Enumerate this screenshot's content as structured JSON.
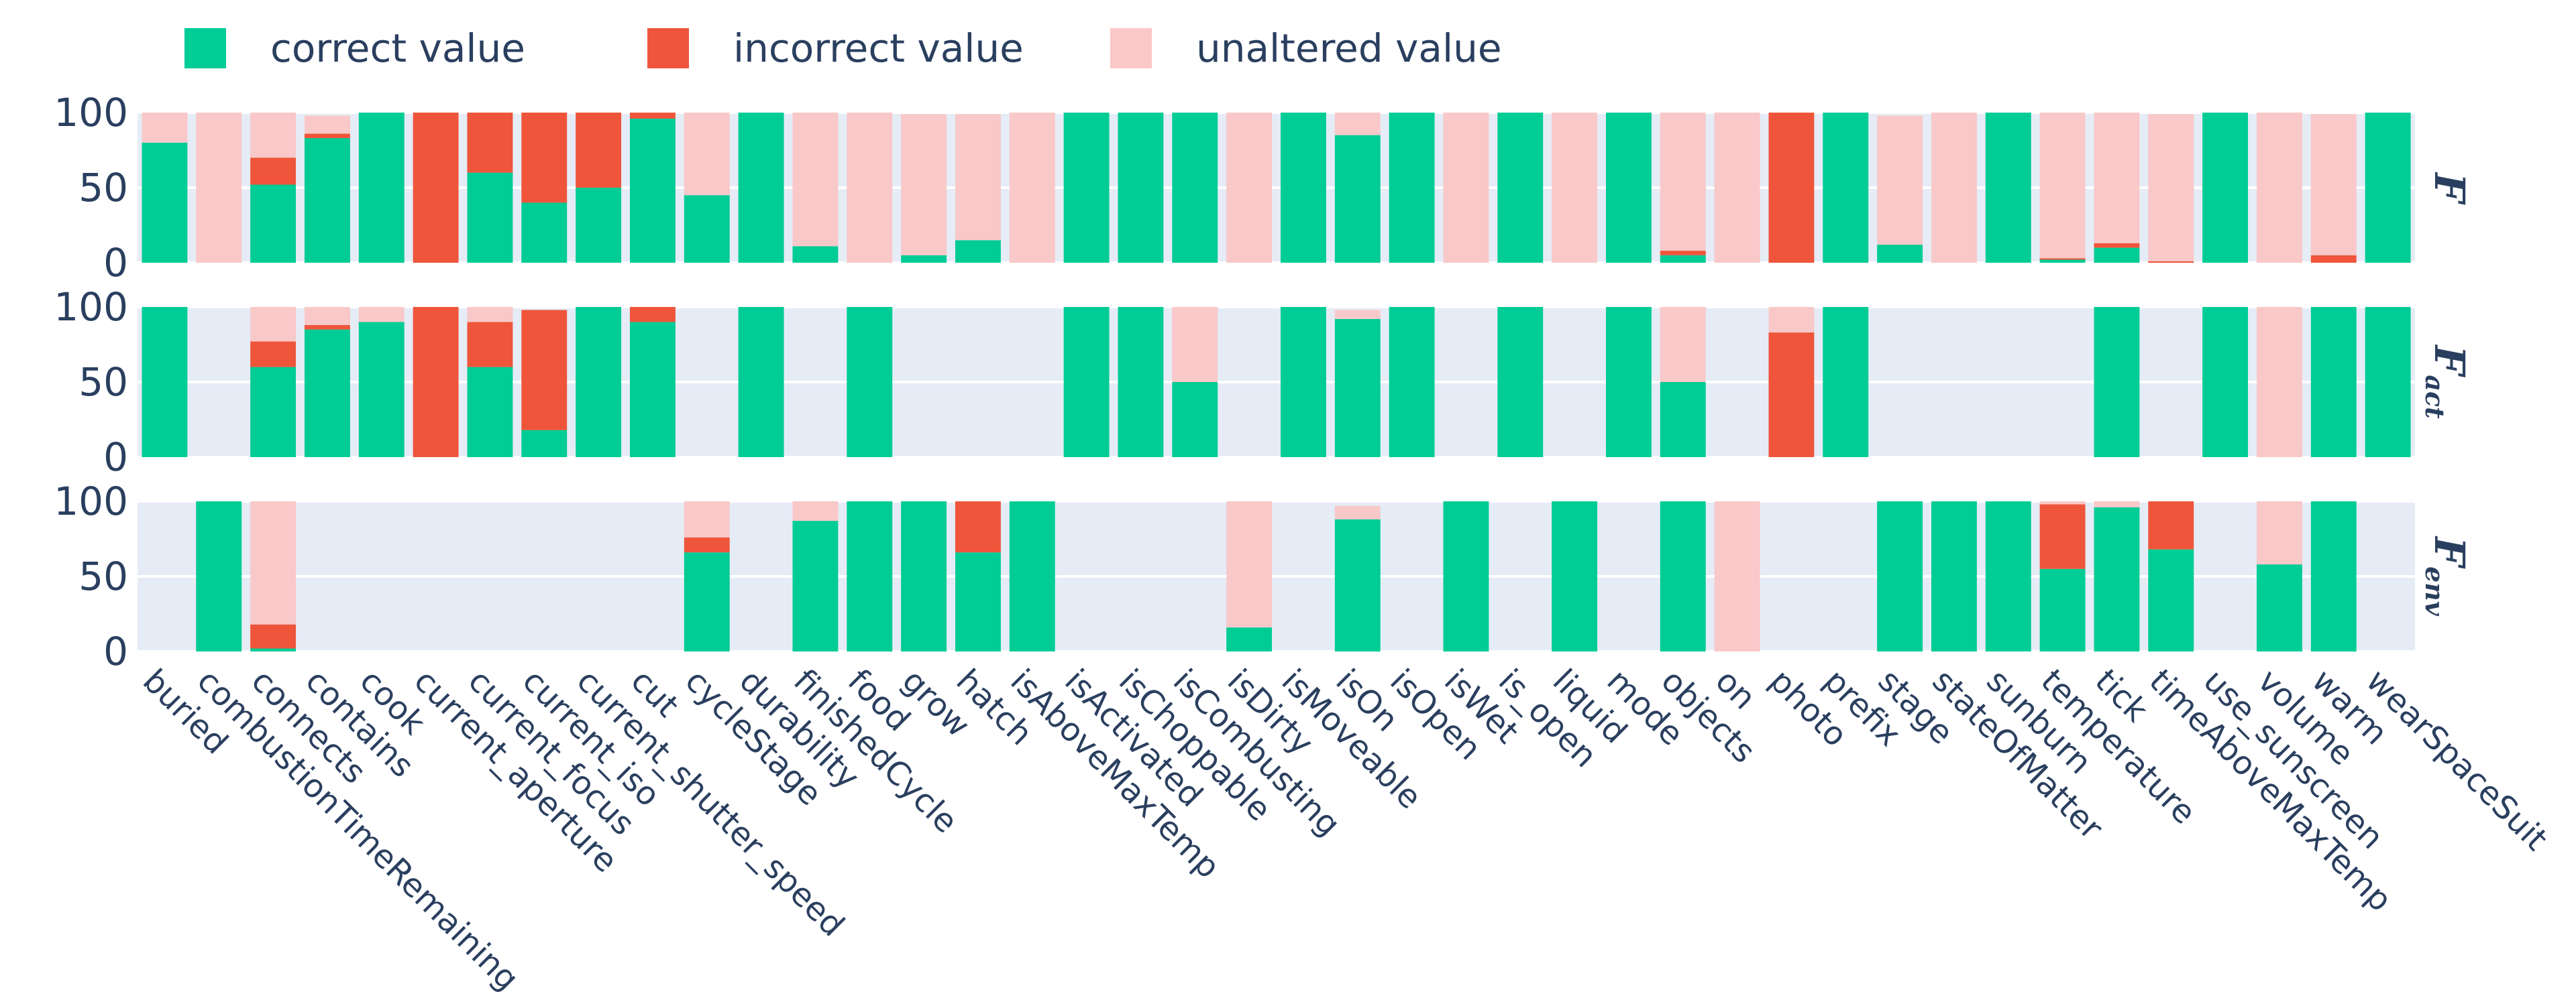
{
  "chart_data": {
    "type": "bar",
    "stacked": true,
    "colors": {
      "correct value": "#00cc96",
      "incorrect value": "#ef553b",
      "unaltered value": "#f9c8c8",
      "panel_background": "#e5ecf6",
      "text": "#2a3f5f"
    },
    "legend": {
      "position": "top-left",
      "entries": [
        "correct value",
        "incorrect value",
        "unaltered value"
      ]
    },
    "categories": [
      "buried",
      "combustionTimeRemaining",
      "connects",
      "contains",
      "cook",
      "current_aperture",
      "current_focus",
      "current_iso",
      "current_shutter_speed",
      "cut",
      "cycleStage",
      "durability",
      "finishedCycle",
      "food",
      "grow",
      "hatch",
      "isAboveMaxTemp",
      "isActivated",
      "isChoppable",
      "isCombusting",
      "isDirty",
      "isMoveable",
      "isOn",
      "isOpen",
      "isWet",
      "is_open",
      "liquid",
      "mode",
      "objects",
      "on",
      "photo",
      "prefix",
      "stage",
      "stateOfMatter",
      "sunburn",
      "temperature",
      "tick",
      "timeAboveMaxTemp",
      "use_sunscreen",
      "volume",
      "warm",
      "wearSpaceSuit"
    ],
    "y_ticks": [
      0,
      50,
      100
    ],
    "ylim": [
      0,
      100
    ],
    "grid": true,
    "panels": [
      {
        "label": "F",
        "subscript": "",
        "series": [
          {
            "name": "correct value",
            "values": [
              80,
              0,
              52,
              83,
              100,
              0,
              60,
              40,
              50,
              96,
              45,
              100,
              11,
              0,
              5,
              15,
              0,
              100,
              100,
              100,
              0,
              100,
              85,
              100,
              0,
              100,
              0,
              100,
              5,
              0,
              0,
              100,
              12,
              0,
              100,
              2,
              10,
              0,
              100,
              0,
              0,
              100
            ]
          },
          {
            "name": "incorrect value",
            "values": [
              0,
              0,
              18,
              3,
              0,
              100,
              40,
              60,
              50,
              4,
              0,
              0,
              0,
              0,
              0,
              0,
              0,
              0,
              0,
              0,
              0,
              0,
              0,
              0,
              0,
              0,
              0,
              0,
              3,
              0,
              100,
              0,
              0,
              0,
              0,
              1,
              3,
              1,
              0,
              0,
              5,
              0
            ]
          },
          {
            "name": "unaltered value",
            "values": [
              20,
              100,
              30,
              12,
              0,
              0,
              0,
              0,
              0,
              0,
              55,
              0,
              89,
              100,
              94,
              84,
              100,
              0,
              0,
              0,
              100,
              0,
              15,
              0,
              100,
              0,
              100,
              0,
              92,
              100,
              0,
              0,
              86,
              100,
              0,
              97,
              87,
              98,
              0,
              100,
              94,
              0
            ]
          }
        ]
      },
      {
        "label": "F",
        "subscript": "act",
        "series": [
          {
            "name": "correct value",
            "values": [
              100,
              null,
              60,
              85,
              90,
              0,
              60,
              18,
              100,
              90,
              null,
              100,
              null,
              100,
              null,
              null,
              null,
              100,
              100,
              50,
              null,
              100,
              92,
              100,
              null,
              100,
              null,
              100,
              50,
              null,
              0,
              100,
              null,
              null,
              null,
              null,
              100,
              null,
              100,
              0,
              100,
              100
            ]
          },
          {
            "name": "incorrect value",
            "values": [
              0,
              null,
              17,
              3,
              0,
              100,
              30,
              80,
              0,
              10,
              null,
              0,
              null,
              0,
              null,
              null,
              null,
              0,
              0,
              0,
              null,
              0,
              0,
              0,
              null,
              0,
              null,
              0,
              0,
              null,
              83,
              0,
              null,
              null,
              null,
              null,
              0,
              null,
              0,
              0,
              0,
              0
            ]
          },
          {
            "name": "unaltered value",
            "values": [
              0,
              null,
              23,
              12,
              10,
              0,
              10,
              0,
              0,
              0,
              null,
              0,
              null,
              0,
              null,
              null,
              null,
              0,
              0,
              50,
              null,
              0,
              6,
              0,
              null,
              0,
              null,
              0,
              50,
              null,
              17,
              0,
              null,
              null,
              null,
              null,
              0,
              null,
              0,
              100,
              0,
              0
            ]
          }
        ]
      },
      {
        "label": "F",
        "subscript": "env",
        "series": [
          {
            "name": "correct value",
            "values": [
              null,
              100,
              2,
              null,
              null,
              null,
              null,
              null,
              null,
              null,
              66,
              null,
              87,
              100,
              100,
              66,
              100,
              null,
              null,
              null,
              16,
              null,
              88,
              null,
              100,
              null,
              100,
              null,
              100,
              0,
              null,
              null,
              100,
              100,
              100,
              55,
              96,
              68,
              null,
              58,
              100,
              null
            ]
          },
          {
            "name": "incorrect value",
            "values": [
              null,
              0,
              16,
              null,
              null,
              null,
              null,
              null,
              null,
              null,
              10,
              null,
              0,
              0,
              0,
              34,
              0,
              null,
              null,
              null,
              0,
              null,
              0,
              null,
              0,
              null,
              0,
              null,
              0,
              0,
              null,
              null,
              0,
              0,
              0,
              43,
              0,
              32,
              null,
              0,
              0,
              null
            ]
          },
          {
            "name": "unaltered value",
            "values": [
              null,
              0,
              82,
              null,
              null,
              null,
              null,
              null,
              null,
              null,
              24,
              null,
              13,
              0,
              0,
              0,
              0,
              null,
              null,
              null,
              84,
              null,
              9,
              null,
              0,
              null,
              0,
              null,
              0,
              100,
              null,
              null,
              0,
              0,
              0,
              2,
              4,
              0,
              null,
              42,
              0,
              null
            ]
          }
        ]
      }
    ]
  }
}
